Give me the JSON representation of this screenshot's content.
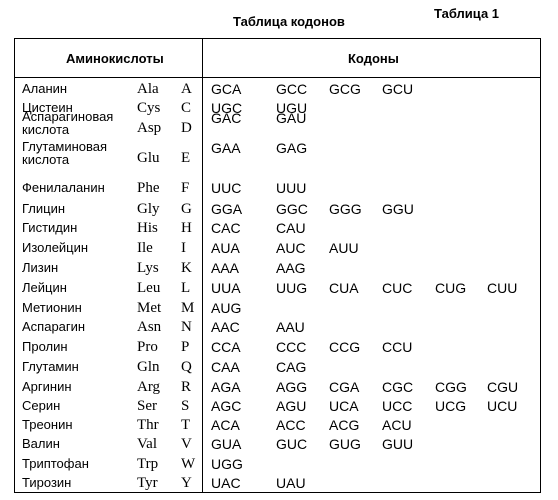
{
  "table_label": "Таблица 1",
  "title": "Таблица кодонов",
  "headers": {
    "amino": "Аминокислоты",
    "codons": "Кодоны"
  },
  "rows": [
    {
      "name": "Аланин",
      "three": "Ala",
      "one": "A",
      "codons": [
        "GCA",
        "GCC",
        "GCG",
        "GCU"
      ]
    },
    {
      "name": "Цистеин",
      "three": "Cys",
      "one": "C",
      "codons": [
        "UGC",
        "UGU"
      ]
    },
    {
      "name": "Аспарагиновая\nкислота",
      "three": "Asp",
      "one": "D",
      "codons": [
        "GAC",
        "GAU"
      ]
    },
    {
      "name": "Глутаминовая\nкислота",
      "three": "Glu",
      "one": "E",
      "codons": [
        "GAA",
        "GAG"
      ]
    },
    {
      "name": "Фенилаланин",
      "three": "Phe",
      "one": "F",
      "codons": [
        "UUC",
        "UUU"
      ]
    },
    {
      "name": "Глицин",
      "three": "Gly",
      "one": "G",
      "codons": [
        "GGA",
        "GGC",
        "GGG",
        "GGU"
      ]
    },
    {
      "name": "Гистидин",
      "three": "His",
      "one": "H",
      "codons": [
        "CAC",
        "CAU"
      ]
    },
    {
      "name": "Изолейцин",
      "three": "Ile",
      "one": "I",
      "codons": [
        "AUA",
        "AUC",
        "AUU"
      ]
    },
    {
      "name": "Лизин",
      "three": "Lys",
      "one": "K",
      "codons": [
        "AAA",
        "AAG"
      ]
    },
    {
      "name": "Лейцин",
      "three": "Leu",
      "one": "L",
      "codons": [
        "UUA",
        "UUG",
        "CUA",
        "CUC",
        "CUG",
        "CUU"
      ]
    },
    {
      "name": "Метионин",
      "three": "Met",
      "one": "M",
      "codons": [
        "AUG"
      ]
    },
    {
      "name": "Аспарагин",
      "three": "Asn",
      "one": "N",
      "codons": [
        "AAC",
        "AAU"
      ]
    },
    {
      "name": "Пролин",
      "three": "Pro",
      "one": "P",
      "codons": [
        "CCA",
        "CCC",
        "CCG",
        "CCU"
      ]
    },
    {
      "name": "Глутамин",
      "three": "Gln",
      "one": "Q",
      "codons": [
        "CAA",
        "CAG"
      ]
    },
    {
      "name": "Аргинин",
      "three": "Arg",
      "one": "R",
      "codons": [
        "AGA",
        "AGG",
        "CGA",
        "CGC",
        "CGG",
        "CGU"
      ]
    },
    {
      "name": "Серин",
      "three": "Ser",
      "one": "S",
      "codons": [
        "AGC",
        "AGU",
        "UCA",
        "UCC",
        "UCG",
        "UCU"
      ]
    },
    {
      "name": "Треонин",
      "three": "Thr",
      "one": "T",
      "codons": [
        "ACA",
        "ACC",
        "ACG",
        "ACU"
      ]
    },
    {
      "name": "Валин",
      "three": "Val",
      "one": "V",
      "codons": [
        "GUA",
        "GUC",
        "GUG",
        "GUU"
      ]
    },
    {
      "name": "Триптофан",
      "three": "Trp",
      "one": "W",
      "codons": [
        "UGG"
      ]
    },
    {
      "name": "Тирозин",
      "three": "Tyr",
      "one": "Y",
      "codons": [
        "UAC",
        "UAU"
      ]
    }
  ]
}
